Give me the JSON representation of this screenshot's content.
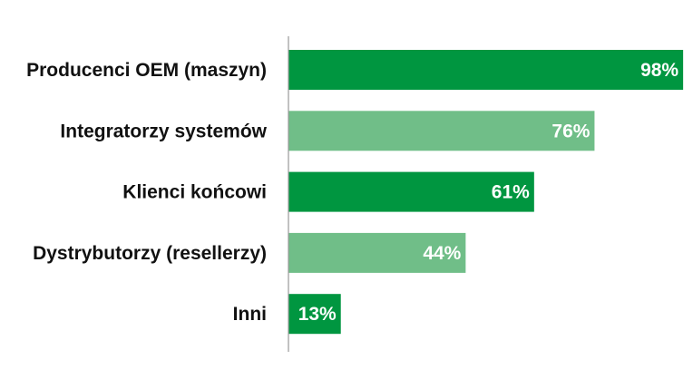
{
  "chart_data": {
    "type": "bar",
    "orientation": "horizontal",
    "title": "",
    "xlabel": "",
    "ylabel": "",
    "categories": [
      "Producenci OEM (maszyn)",
      "Integratorzy systemów",
      "Klienci końcowi",
      "Dystrybutorzy (resellerzy)",
      "Inni"
    ],
    "values": [
      98,
      76,
      61,
      44,
      13
    ],
    "value_labels": [
      "98%",
      "76%",
      "61%",
      "44%",
      "13%"
    ],
    "bar_colors": [
      "#009640",
      "#70be88",
      "#009640",
      "#70be88",
      "#009640"
    ],
    "xlim": [
      0,
      100
    ],
    "grid": false,
    "legend": "none"
  }
}
